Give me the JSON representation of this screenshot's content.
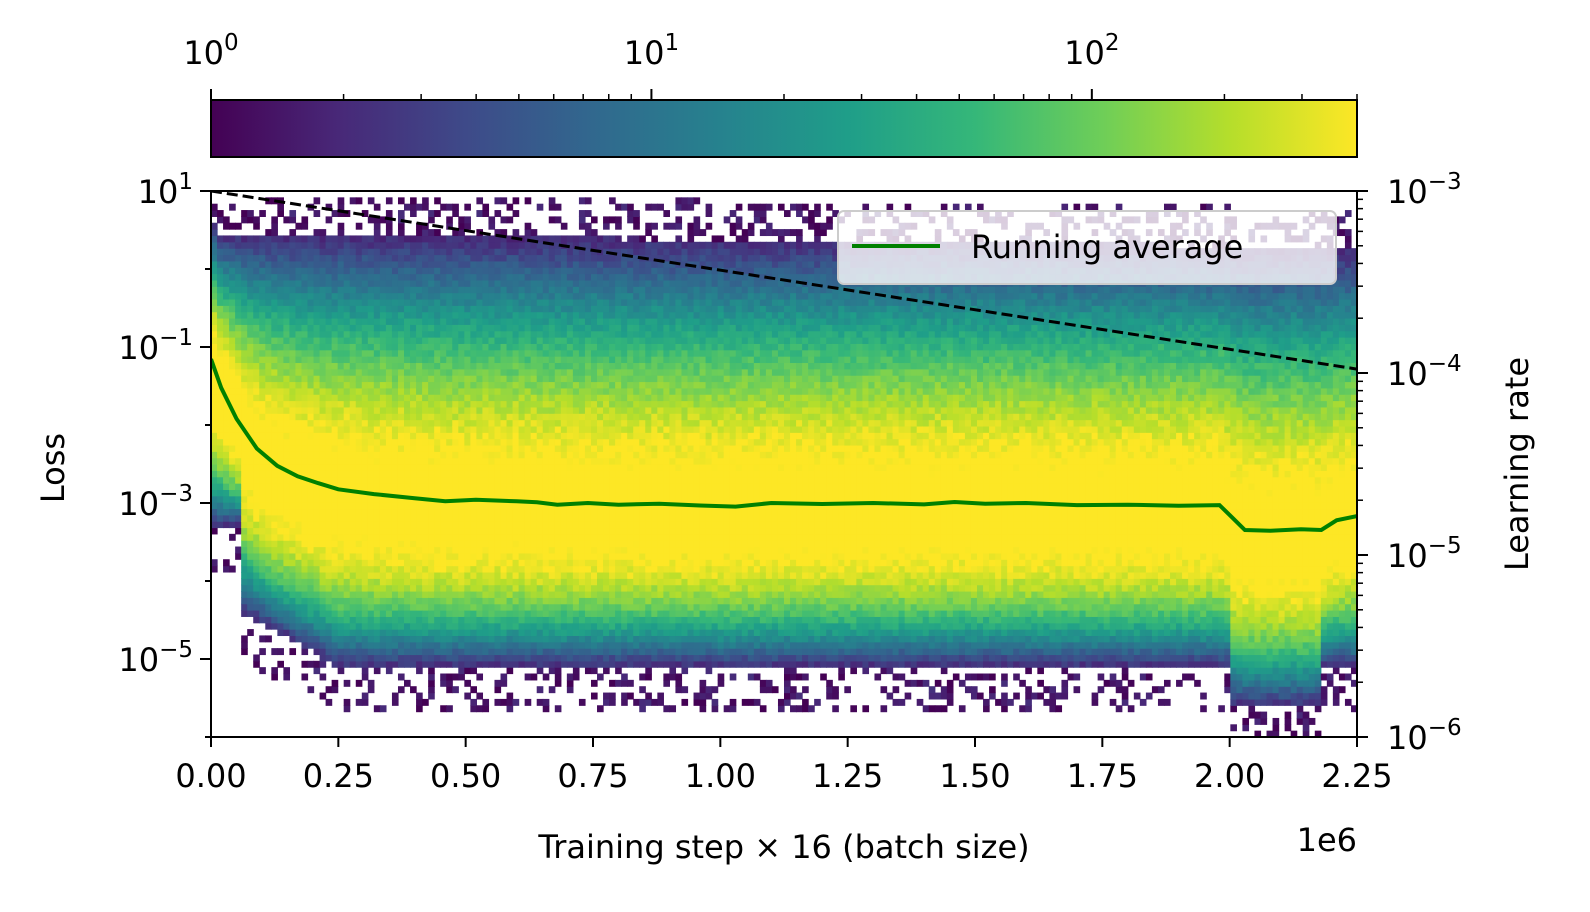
{
  "chart_data": {
    "type": "heatmap",
    "title": "",
    "xlabel": "Training step × 16 (batch size)",
    "x_offset_label": "1e6",
    "ylabel_left": "Loss",
    "ylabel_right": "Learning rate",
    "x_range": [
      0,
      2250000
    ],
    "y_left_range": [
      1e-06,
      10
    ],
    "y_left_scale": "log",
    "y_right_range": [
      1e-06,
      0.001
    ],
    "y_right_scale": "log",
    "x_ticks": [
      {
        "value": 0,
        "label": "0.00"
      },
      {
        "value": 250000,
        "label": "0.25"
      },
      {
        "value": 500000,
        "label": "0.50"
      },
      {
        "value": 750000,
        "label": "0.75"
      },
      {
        "value": 1000000,
        "label": "1.00"
      },
      {
        "value": 1250000,
        "label": "1.25"
      },
      {
        "value": 1500000,
        "label": "1.50"
      },
      {
        "value": 1750000,
        "label": "1.75"
      },
      {
        "value": 2000000,
        "label": "2.00"
      },
      {
        "value": 2250000,
        "label": "2.25"
      }
    ],
    "y_left_ticks": [
      {
        "value": 10,
        "base": "10",
        "exp": "1"
      },
      {
        "value": 0.1,
        "base": "10",
        "exp": "−1"
      },
      {
        "value": 0.001,
        "base": "10",
        "exp": "−3"
      },
      {
        "value": 1e-05,
        "base": "10",
        "exp": "−5"
      }
    ],
    "y_right_ticks": [
      {
        "value": 0.001,
        "base": "10",
        "exp": "−3"
      },
      {
        "value": 0.0001,
        "base": "10",
        "exp": "−4"
      },
      {
        "value": 1e-05,
        "base": "10",
        "exp": "−5"
      },
      {
        "value": 1e-06,
        "base": "10",
        "exp": "−6"
      }
    ],
    "colorbar": {
      "colormap": "viridis",
      "scale": "log",
      "range": [
        1,
        400
      ],
      "ticks": [
        {
          "value": 1,
          "base": "10",
          "exp": "0"
        },
        {
          "value": 10,
          "base": "10",
          "exp": "1"
        },
        {
          "value": 100,
          "base": "10",
          "exp": "2"
        }
      ],
      "colors": [
        "#440154",
        "#482878",
        "#3e4a89",
        "#31688e",
        "#26828e",
        "#1f9e89",
        "#35b779",
        "#6ece58",
        "#b5de2b",
        "#fde725"
      ]
    },
    "series": [
      {
        "name": "Running average",
        "axis": "left",
        "color": "#008000",
        "style": "solid",
        "x": [
          0,
          20000,
          50000,
          90000,
          130000,
          170000,
          210000,
          250000,
          320000,
          400000,
          460000,
          520000,
          600000,
          640000,
          680000,
          740000,
          800000,
          880000,
          960000,
          1030000,
          1100000,
          1200000,
          1300000,
          1400000,
          1460000,
          1520000,
          1600000,
          1700000,
          1800000,
          1900000,
          1980000,
          2000000,
          2030000,
          2080000,
          2140000,
          2180000,
          2210000,
          2250000
        ],
        "y": [
          0.07,
          0.03,
          0.012,
          0.005,
          0.003,
          0.0022,
          0.0018,
          0.0015,
          0.0013,
          0.00115,
          0.00105,
          0.0011,
          0.00105,
          0.00102,
          0.00095,
          0.001,
          0.00095,
          0.00098,
          0.00093,
          0.0009,
          0.001,
          0.00097,
          0.001,
          0.00096,
          0.00103,
          0.00098,
          0.001,
          0.00094,
          0.00095,
          0.00092,
          0.00094,
          0.0007,
          0.00045,
          0.00044,
          0.00046,
          0.00045,
          0.0006,
          0.00068
        ]
      },
      {
        "name": "",
        "axis": "right",
        "color": "#000000",
        "style": "dashed",
        "x": [
          0,
          2250000
        ],
        "y": [
          0.001,
          0.000105
        ]
      }
    ],
    "legend": {
      "position": "top-right",
      "entries": [
        "Running average"
      ]
    },
    "grid": false
  }
}
